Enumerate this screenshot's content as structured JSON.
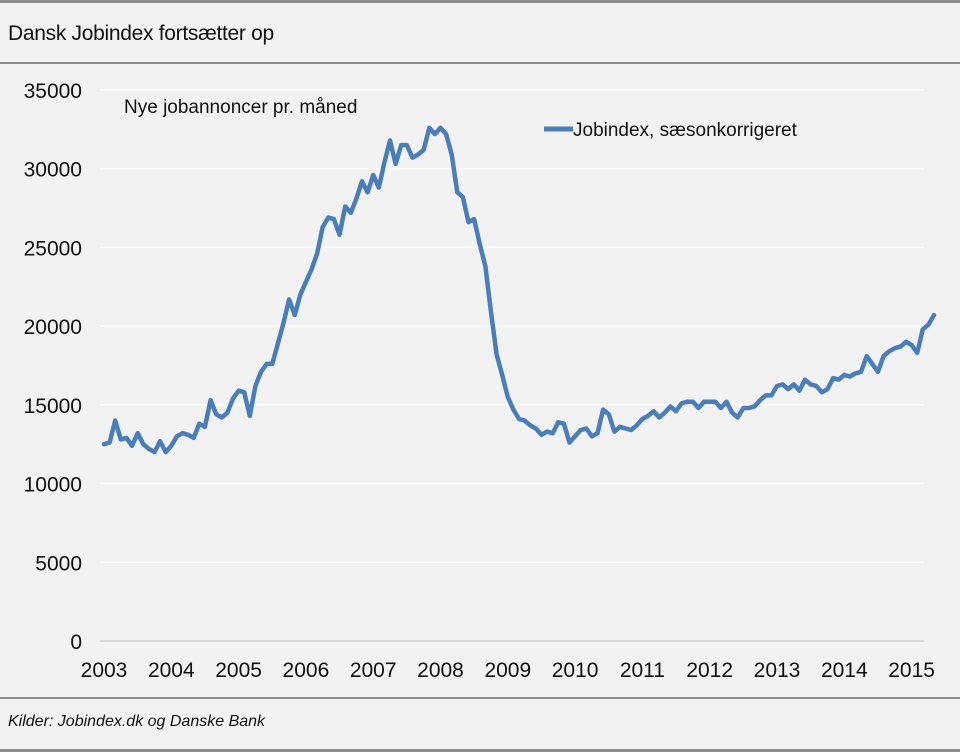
{
  "title": "Dansk Jobindex fortsætter op",
  "source": "Kilder: Jobindex.dk og Danske Bank",
  "chart_data": {
    "type": "line",
    "ylabel": "Nye jobannoncer pr. måned",
    "xlabel": "",
    "ylim": [
      0,
      35000
    ],
    "yticks": [
      0,
      5000,
      10000,
      15000,
      20000,
      25000,
      30000,
      35000
    ],
    "xticks": [
      "2003",
      "2004",
      "2005",
      "2006",
      "2007",
      "2008",
      "2009",
      "2010",
      "2011",
      "2012",
      "2013",
      "2014",
      "2015"
    ],
    "grid": "horizontal",
    "legend": "top-right",
    "color": "#4a7ebb",
    "series": [
      {
        "name": "Jobindex, sæsonkorrigeret",
        "points": [
          [
            "2003-01",
            12500
          ],
          [
            "2003-02",
            12600
          ],
          [
            "2003-03",
            14000
          ],
          [
            "2003-04",
            12800
          ],
          [
            "2003-05",
            12900
          ],
          [
            "2003-06",
            12400
          ],
          [
            "2003-07",
            13200
          ],
          [
            "2003-08",
            12500
          ],
          [
            "2003-09",
            12200
          ],
          [
            "2003-10",
            12000
          ],
          [
            "2003-11",
            12700
          ],
          [
            "2003-12",
            12000
          ],
          [
            "2004-01",
            12400
          ],
          [
            "2004-02",
            13000
          ],
          [
            "2004-03",
            13200
          ],
          [
            "2004-04",
            13100
          ],
          [
            "2004-05",
            12900
          ],
          [
            "2004-06",
            13800
          ],
          [
            "2004-07",
            13600
          ],
          [
            "2004-08",
            15300
          ],
          [
            "2004-09",
            14400
          ],
          [
            "2004-10",
            14200
          ],
          [
            "2004-11",
            14500
          ],
          [
            "2004-12",
            15400
          ],
          [
            "2005-01",
            15900
          ],
          [
            "2005-02",
            15800
          ],
          [
            "2005-03",
            14300
          ],
          [
            "2005-04",
            16200
          ],
          [
            "2005-05",
            17100
          ],
          [
            "2005-06",
            17600
          ],
          [
            "2005-07",
            17600
          ],
          [
            "2005-08",
            18900
          ],
          [
            "2005-09",
            20200
          ],
          [
            "2005-10",
            21700
          ],
          [
            "2005-11",
            20700
          ],
          [
            "2005-12",
            22000
          ],
          [
            "2006-01",
            22800
          ],
          [
            "2006-02",
            23600
          ],
          [
            "2006-03",
            24600
          ],
          [
            "2006-04",
            26300
          ],
          [
            "2006-05",
            26900
          ],
          [
            "2006-06",
            26800
          ],
          [
            "2006-07",
            25800
          ],
          [
            "2006-08",
            27600
          ],
          [
            "2006-09",
            27200
          ],
          [
            "2006-10",
            28100
          ],
          [
            "2006-11",
            29200
          ],
          [
            "2006-12",
            28500
          ],
          [
            "2007-01",
            29600
          ],
          [
            "2007-02",
            28800
          ],
          [
            "2007-03",
            30400
          ],
          [
            "2007-04",
            31800
          ],
          [
            "2007-05",
            30300
          ],
          [
            "2007-06",
            31500
          ],
          [
            "2007-07",
            31500
          ],
          [
            "2007-08",
            30700
          ],
          [
            "2007-09",
            30900
          ],
          [
            "2007-10",
            31200
          ],
          [
            "2007-11",
            32600
          ],
          [
            "2007-12",
            32200
          ],
          [
            "2008-01",
            32600
          ],
          [
            "2008-02",
            32200
          ],
          [
            "2008-03",
            30900
          ],
          [
            "2008-04",
            28500
          ],
          [
            "2008-05",
            28200
          ],
          [
            "2008-06",
            26600
          ],
          [
            "2008-07",
            26800
          ],
          [
            "2008-08",
            25200
          ],
          [
            "2008-09",
            23800
          ],
          [
            "2008-10",
            20900
          ],
          [
            "2008-11",
            18200
          ],
          [
            "2008-12",
            16900
          ],
          [
            "2009-01",
            15500
          ],
          [
            "2009-02",
            14700
          ],
          [
            "2009-03",
            14100
          ],
          [
            "2009-04",
            14000
          ],
          [
            "2009-05",
            13700
          ],
          [
            "2009-06",
            13500
          ],
          [
            "2009-07",
            13100
          ],
          [
            "2009-08",
            13300
          ],
          [
            "2009-09",
            13200
          ],
          [
            "2009-10",
            13900
          ],
          [
            "2009-11",
            13800
          ],
          [
            "2009-12",
            12600
          ],
          [
            "2010-01",
            13000
          ],
          [
            "2010-02",
            13400
          ],
          [
            "2010-03",
            13500
          ],
          [
            "2010-04",
            13000
          ],
          [
            "2010-05",
            13200
          ],
          [
            "2010-06",
            14700
          ],
          [
            "2010-07",
            14400
          ],
          [
            "2010-08",
            13300
          ],
          [
            "2010-09",
            13600
          ],
          [
            "2010-10",
            13500
          ],
          [
            "2010-11",
            13400
          ],
          [
            "2010-12",
            13700
          ],
          [
            "2011-01",
            14100
          ],
          [
            "2011-02",
            14300
          ],
          [
            "2011-03",
            14600
          ],
          [
            "2011-04",
            14200
          ],
          [
            "2011-05",
            14500
          ],
          [
            "2011-06",
            14900
          ],
          [
            "2011-07",
            14600
          ],
          [
            "2011-08",
            15100
          ],
          [
            "2011-09",
            15200
          ],
          [
            "2011-10",
            15200
          ],
          [
            "2011-11",
            14800
          ],
          [
            "2011-12",
            15200
          ],
          [
            "2012-01",
            15200
          ],
          [
            "2012-02",
            15200
          ],
          [
            "2012-03",
            14800
          ],
          [
            "2012-04",
            15200
          ],
          [
            "2012-05",
            14500
          ],
          [
            "2012-06",
            14200
          ],
          [
            "2012-07",
            14800
          ],
          [
            "2012-08",
            14800
          ],
          [
            "2012-09",
            14900
          ],
          [
            "2012-10",
            15300
          ],
          [
            "2012-11",
            15600
          ],
          [
            "2012-12",
            15600
          ],
          [
            "2013-01",
            16200
          ],
          [
            "2013-02",
            16300
          ],
          [
            "2013-03",
            16000
          ],
          [
            "2013-04",
            16300
          ],
          [
            "2013-05",
            15900
          ],
          [
            "2013-06",
            16600
          ],
          [
            "2013-07",
            16300
          ],
          [
            "2013-08",
            16200
          ],
          [
            "2013-09",
            15800
          ],
          [
            "2013-10",
            16000
          ],
          [
            "2013-11",
            16700
          ],
          [
            "2013-12",
            16600
          ],
          [
            "2014-01",
            16900
          ],
          [
            "2014-02",
            16800
          ],
          [
            "2014-03",
            17000
          ],
          [
            "2014-04",
            17100
          ],
          [
            "2014-05",
            18100
          ],
          [
            "2014-06",
            17600
          ],
          [
            "2014-07",
            17100
          ],
          [
            "2014-08",
            18100
          ],
          [
            "2014-09",
            18400
          ],
          [
            "2014-10",
            18600
          ],
          [
            "2014-11",
            18700
          ],
          [
            "2014-12",
            19000
          ],
          [
            "2015-01",
            18800
          ],
          [
            "2015-02",
            18300
          ],
          [
            "2015-03",
            19800
          ],
          [
            "2015-04",
            20100
          ],
          [
            "2015-05",
            20700
          ]
        ]
      }
    ]
  }
}
